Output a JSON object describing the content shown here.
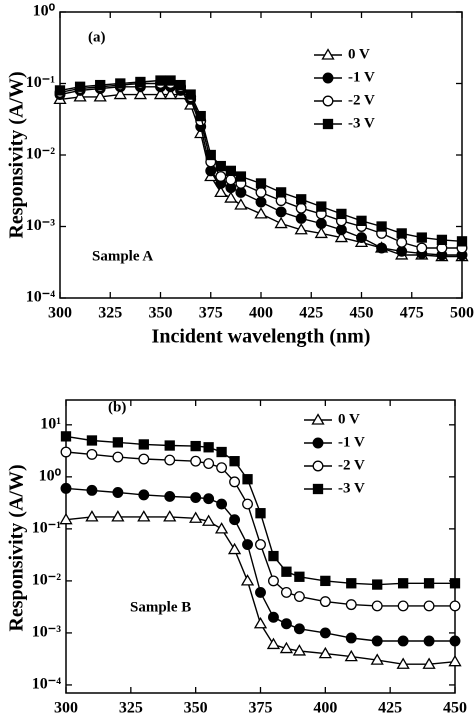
{
  "chart_data": [
    {
      "type": "line",
      "log_y": true,
      "legend": "upper right",
      "x_label": "Incident wavelength (nm)",
      "y_label": "Responsivity (A/W)",
      "annotations": [
        "(a)",
        "Sample A"
      ],
      "xlim": [
        300,
        500
      ],
      "xticks": [
        300,
        325,
        350,
        375,
        400,
        425,
        450,
        475,
        500
      ],
      "ylim": [
        0.0001,
        1
      ],
      "yticks": [
        {
          "value": 1,
          "label": "10⁰"
        },
        {
          "value": 0.1,
          "label": "10⁻¹"
        },
        {
          "value": 0.01,
          "label": "10⁻²"
        },
        {
          "value": 0.001,
          "label": "10⁻³"
        },
        {
          "value": 0.0001,
          "label": "10⁻⁴"
        }
      ],
      "x": [
        300,
        310,
        320,
        330,
        340,
        350,
        355,
        360,
        365,
        370,
        375,
        380,
        385,
        390,
        400,
        410,
        420,
        430,
        440,
        450,
        460,
        470,
        480,
        490,
        500
      ],
      "series": [
        {
          "name": "0 V",
          "color": "#000000",
          "marker": "triangle-open",
          "values": [
            0.06,
            0.065,
            0.065,
            0.07,
            0.07,
            0.07,
            0.07,
            0.07,
            0.05,
            0.02,
            0.005,
            0.003,
            0.0025,
            0.002,
            0.0015,
            0.0011,
            0.0009,
            0.0008,
            0.0007,
            0.0006,
            0.0005,
            0.0004,
            0.0004,
            0.00038,
            0.00038
          ]
        },
        {
          "name": "-1 V",
          "color": "#000000",
          "marker": "circle-filled",
          "values": [
            0.07,
            0.08,
            0.085,
            0.09,
            0.09,
            0.09,
            0.09,
            0.08,
            0.06,
            0.025,
            0.006,
            0.004,
            0.0035,
            0.003,
            0.0022,
            0.0016,
            0.0013,
            0.0011,
            0.0009,
            0.0007,
            0.0005,
            0.00045,
            0.00042,
            0.0004,
            0.0004
          ]
        },
        {
          "name": "-2 V",
          "color": "#000000",
          "marker": "circle-open",
          "values": [
            0.075,
            0.085,
            0.09,
            0.095,
            0.1,
            0.1,
            0.1,
            0.09,
            0.065,
            0.03,
            0.008,
            0.005,
            0.0045,
            0.004,
            0.003,
            0.0023,
            0.0018,
            0.0015,
            0.0012,
            0.001,
            0.0008,
            0.0006,
            0.0005,
            0.0005,
            0.0005
          ]
        },
        {
          "name": "-3 V",
          "color": "#000000",
          "marker": "square-filled",
          "values": [
            0.08,
            0.09,
            0.095,
            0.1,
            0.105,
            0.11,
            0.11,
            0.095,
            0.07,
            0.035,
            0.01,
            0.007,
            0.006,
            0.005,
            0.004,
            0.003,
            0.0024,
            0.0019,
            0.0015,
            0.0012,
            0.001,
            0.0008,
            0.0007,
            0.00065,
            0.00062
          ]
        }
      ]
    },
    {
      "type": "line",
      "log_y": true,
      "legend": "upper right",
      "x_label": "Incident wavelength (nm)",
      "y_label": "Responsivity (A/W)",
      "annotations": [
        "(b)",
        "Sample B"
      ],
      "xlim": [
        300,
        450
      ],
      "xticks": [
        300,
        325,
        350,
        375,
        400,
        425,
        450
      ],
      "ylim": [
        7e-05,
        30
      ],
      "yticks": [
        {
          "value": 10,
          "label": "10¹"
        },
        {
          "value": 1,
          "label": "10⁰"
        },
        {
          "value": 0.1,
          "label": "10⁻¹"
        },
        {
          "value": 0.01,
          "label": "10⁻²"
        },
        {
          "value": 0.001,
          "label": "10⁻³"
        },
        {
          "value": 0.0001,
          "label": "10⁻⁴"
        }
      ],
      "x": [
        300,
        310,
        320,
        330,
        340,
        350,
        355,
        360,
        365,
        370,
        375,
        380,
        385,
        390,
        400,
        410,
        420,
        430,
        440,
        450
      ],
      "series": [
        {
          "name": "0 V",
          "color": "#000000",
          "marker": "triangle-open",
          "values": [
            0.15,
            0.17,
            0.17,
            0.17,
            0.17,
            0.16,
            0.14,
            0.1,
            0.04,
            0.01,
            0.0015,
            0.0006,
            0.0005,
            0.00045,
            0.0004,
            0.00035,
            0.0003,
            0.00025,
            0.00025,
            0.00028
          ]
        },
        {
          "name": "-1 V",
          "color": "#000000",
          "marker": "circle-filled",
          "values": [
            0.6,
            0.55,
            0.5,
            0.45,
            0.42,
            0.4,
            0.38,
            0.3,
            0.15,
            0.05,
            0.006,
            0.002,
            0.0015,
            0.0012,
            0.001,
            0.0008,
            0.0007,
            0.0007,
            0.0007,
            0.0007
          ]
        },
        {
          "name": "-2 V",
          "color": "#000000",
          "marker": "circle-open",
          "values": [
            3,
            2.7,
            2.4,
            2.2,
            2.1,
            2,
            1.8,
            1.5,
            0.8,
            0.3,
            0.05,
            0.01,
            0.006,
            0.005,
            0.004,
            0.0035,
            0.0033,
            0.0033,
            0.0033,
            0.0033
          ]
        },
        {
          "name": "-3 V",
          "color": "#000000",
          "marker": "square-filled",
          "values": [
            6,
            5,
            4.6,
            4.2,
            4,
            3.9,
            3.7,
            3,
            2,
            0.9,
            0.2,
            0.03,
            0.015,
            0.012,
            0.01,
            0.009,
            0.0085,
            0.009,
            0.009,
            0.009
          ]
        }
      ]
    }
  ]
}
